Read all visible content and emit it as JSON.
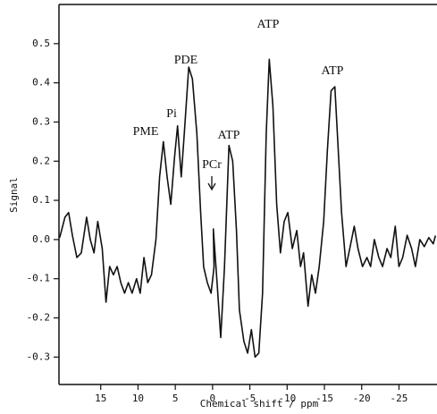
{
  "chart_data": {
    "type": "line",
    "x_label": "Chemical shift / ppm",
    "y_label": "Signal",
    "xlim": [
      20.6,
      -30.1
    ],
    "ylim": [
      -0.37,
      0.6
    ],
    "xticks": [
      15,
      10,
      5,
      0,
      -5,
      -10,
      -15,
      -20,
      -25
    ],
    "yticks": [
      -0.3,
      -0.2,
      -0.1,
      {
        "value": 0,
        "label": "0.0"
      },
      0.1,
      0.2,
      0.3,
      0.4,
      0.5
    ],
    "annotations": [
      "PME",
      "Pi",
      "PDE",
      "PCr",
      "ATP",
      "ATP",
      "ATP"
    ],
    "series": [
      {
        "color": "#111111",
        "x": [
          20.5,
          19.8,
          19.3,
          18.8,
          18.2,
          17.6,
          16.9,
          16.4,
          15.9,
          15.4,
          14.8,
          14.3,
          13.8,
          13.3,
          12.8,
          12.3,
          11.8,
          11.3,
          10.8,
          10.2,
          9.7,
          9.2,
          8.7,
          8.2,
          7.6,
          7.1,
          6.6,
          6.1,
          5.6,
          5.1,
          4.7,
          4.2,
          3.8,
          3.2,
          2.7,
          2.1,
          1.6,
          1.2,
          0.7,
          0.2,
          -0.2,
          -0.1,
          -0.6,
          -1.1,
          -1.6,
          -2.2,
          -2.7,
          -3.2,
          -3.6,
          -4.2,
          -4.7,
          -5.2,
          -5.7,
          -6.2,
          -6.7,
          -7.2,
          -7.6,
          -8.1,
          -8.6,
          -9.1,
          -9.6,
          -10.1,
          -10.7,
          -11.3,
          -11.8,
          -12.2,
          -12.8,
          -13.3,
          -13.8,
          -14.3,
          -14.9,
          -15.4,
          -15.9,
          -16.4,
          -16.8,
          -17.3,
          -17.9,
          -18.4,
          -19.0,
          -19.5,
          -20.1,
          -20.7,
          -21.2,
          -21.7,
          -22.3,
          -22.8,
          -23.4,
          -23.9,
          -24.5,
          -25.0,
          -25.5,
          -26.1,
          -26.7,
          -27.2,
          -27.8,
          -28.4,
          -29.0,
          -29.6,
          -29.9
        ],
        "values": [
          0.005,
          0.057,
          0.069,
          0.011,
          -0.046,
          -0.034,
          0.057,
          0,
          -0.034,
          0.046,
          -0.023,
          -0.16,
          -0.069,
          -0.09,
          -0.069,
          -0.11,
          -0.137,
          -0.11,
          -0.137,
          -0.1,
          -0.137,
          -0.046,
          -0.11,
          -0.09,
          0,
          0.16,
          0.25,
          0.16,
          0.09,
          0.21,
          0.29,
          0.16,
          0.27,
          0.44,
          0.41,
          0.27,
          0.07,
          -0.07,
          -0.11,
          -0.137,
          -0.07,
          0.027,
          -0.11,
          -0.25,
          -0.07,
          0.24,
          0.2,
          0.023,
          -0.18,
          -0.26,
          -0.29,
          -0.23,
          -0.3,
          -0.29,
          -0.137,
          0.27,
          0.46,
          0.34,
          0.09,
          -0.034,
          0.046,
          0.069,
          -0.023,
          0.023,
          -0.069,
          -0.034,
          -0.17,
          -0.09,
          -0.137,
          -0.069,
          0.046,
          0.23,
          0.38,
          0.39,
          0.25,
          0.069,
          -0.069,
          -0.023,
          0.034,
          -0.023,
          -0.069,
          -0.046,
          -0.069,
          0,
          -0.046,
          -0.069,
          -0.023,
          -0.046,
          0.034,
          -0.069,
          -0.046,
          0.011,
          -0.023,
          -0.069,
          0,
          -0.018,
          0.005,
          -0.011,
          0.01
        ]
      }
    ]
  }
}
